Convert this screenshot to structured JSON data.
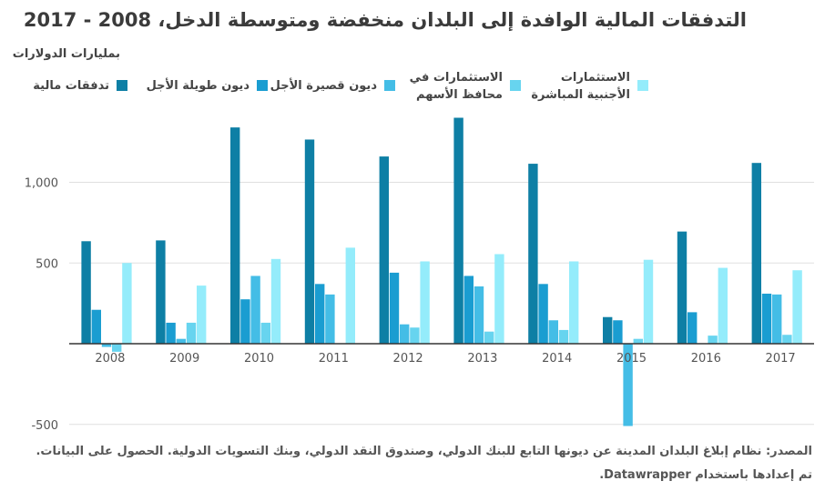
{
  "chart_data": {
    "type": "bar",
    "title": "التدفقات المالية الوافدة إلى البلدان منخفضة ومتوسطة الدخل، 2008 - 2017",
    "ylabel": "بمليارات الدولارات",
    "xlabel": "",
    "ylim": [
      -560,
      1420
    ],
    "yticks": [
      -500,
      500,
      1000
    ],
    "ytick_labels": [
      "-500",
      "500",
      "1,000"
    ],
    "grid": true,
    "categories": [
      "2008",
      "2009",
      "2010",
      "2011",
      "2012",
      "2013",
      "2014",
      "2015",
      "2016",
      "2017"
    ],
    "series": [
      {
        "name": "تدفقات مالية",
        "color": "#0e7fa5",
        "values": [
          635,
          640,
          1340,
          1265,
          1160,
          1400,
          1115,
          165,
          695,
          1120
        ]
      },
      {
        "name": "ديون طويلة الأجل",
        "color": "#1a9dd1",
        "values": [
          210,
          130,
          275,
          370,
          440,
          420,
          370,
          145,
          195,
          310
        ]
      },
      {
        "name": "ديون قصيرة الأجل",
        "color": "#44bde6",
        "values": [
          -20,
          30,
          420,
          305,
          120,
          355,
          145,
          -510,
          0,
          305
        ]
      },
      {
        "name": "الاستثمارات في محافظ الأسهم",
        "color": "#67d4ef",
        "values": [
          -50,
          130,
          130,
          0,
          100,
          75,
          85,
          30,
          50,
          55
        ]
      },
      {
        "name": "الاستثمارات الأجنبية المباشرة",
        "color": "#94ecfb",
        "values": [
          500,
          360,
          525,
          595,
          510,
          555,
          510,
          520,
          470,
          455
        ]
      }
    ],
    "legend_position": "top"
  },
  "legend": {
    "items": [
      {
        "line1": "تدفقات مالية",
        "line2": ""
      },
      {
        "line1": "ديون طويلة الأجل",
        "line2": ""
      },
      {
        "line1": "ديون قصيرة الأجل",
        "line2": ""
      },
      {
        "line1": "الاستثمارات في",
        "line2": "محافظ الأسهم"
      },
      {
        "line1": "الاستثمارات",
        "line2": "الأجنبية المباشرة"
      }
    ]
  },
  "source": "المصدر: نظام إبلاغ البلدان المدينة عن ديونها التابع للبنك الدولي، وصندوق النقد الدولي، وبنك التسويات الدولية. الحصول على البيانات. تم إعدادها باستخدام Datawrapper."
}
